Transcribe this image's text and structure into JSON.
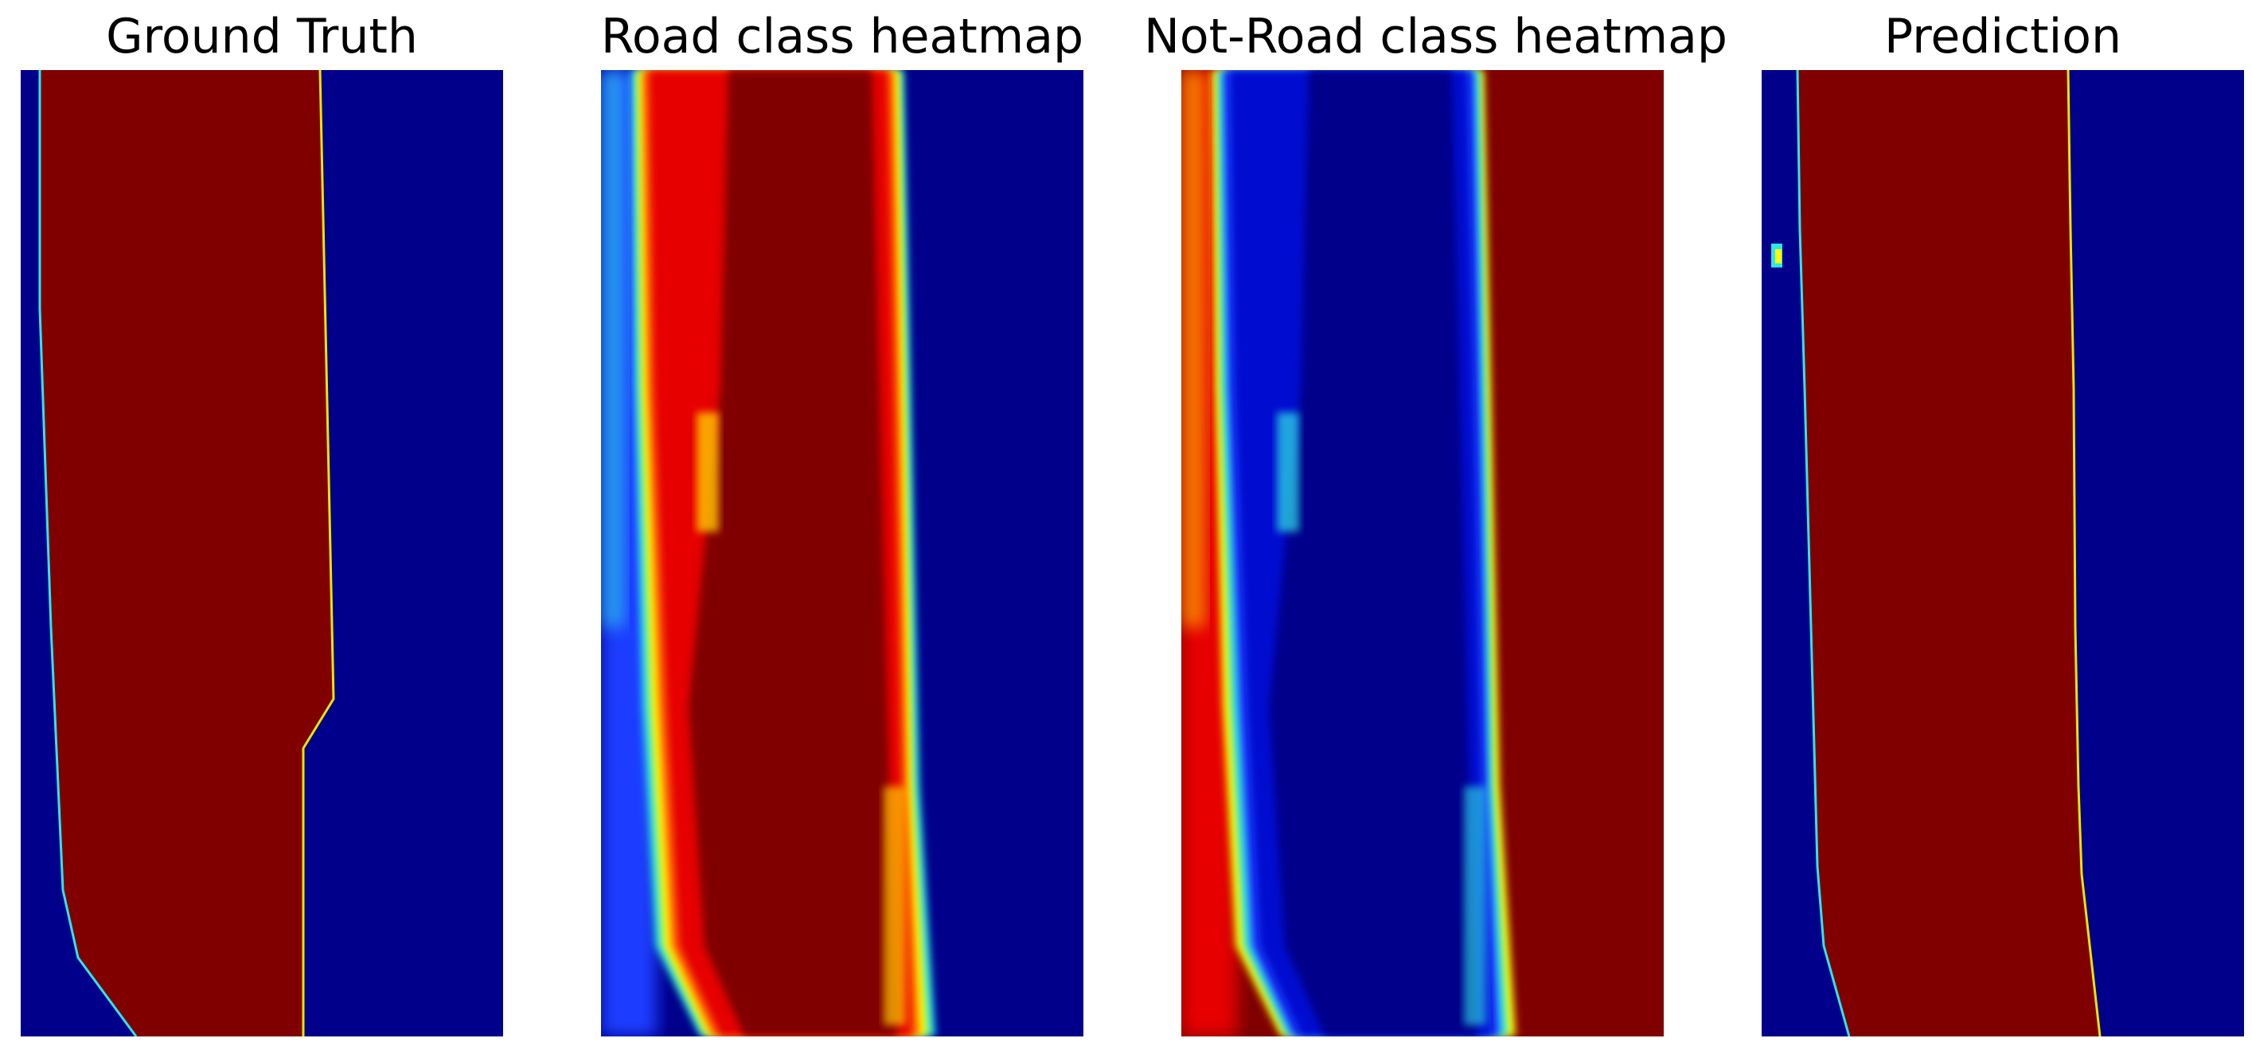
{
  "panels": [
    {
      "title": "Ground Truth",
      "image": "ground-truth-mask"
    },
    {
      "title": "Road class heatmap",
      "image": "road-heatmap"
    },
    {
      "title": "Not-Road class heatmap",
      "image": "not-road-heatmap"
    },
    {
      "title": "Prediction",
      "image": "prediction-mask"
    }
  ],
  "colors": {
    "road": "#800000",
    "background": "#00008b",
    "mid_blue": "#1a3cff",
    "cyan": "#2ee6e6",
    "yellow": "#ffff00",
    "orange": "#ff6600",
    "red": "#e60000"
  }
}
